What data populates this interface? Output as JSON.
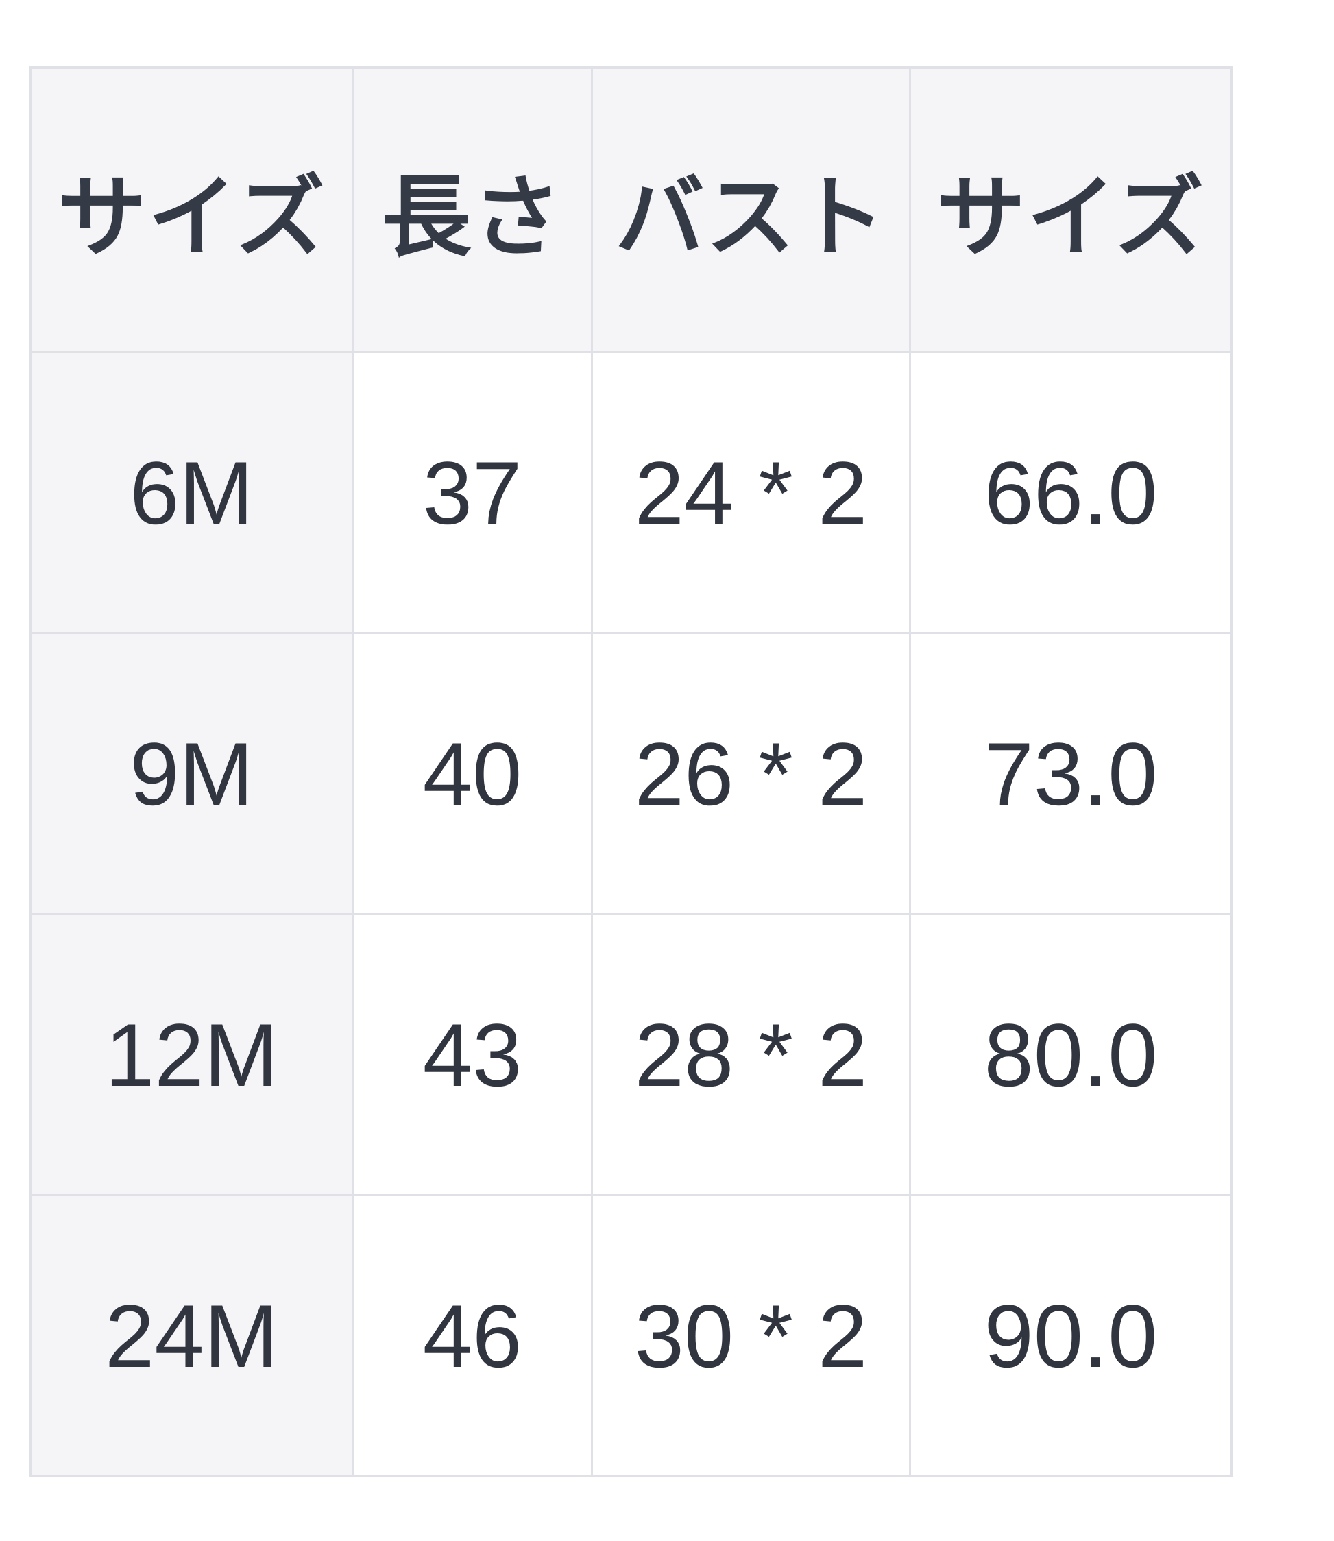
{
  "size_chart": {
    "headers": [
      "サイズ",
      "長さ",
      "バスト",
      "サイズ"
    ],
    "rows": [
      [
        "6M",
        "37",
        "24 * 2",
        "66.0"
      ],
      [
        "9M",
        "40",
        "26 * 2",
        "73.0"
      ],
      [
        "12M",
        "43",
        "28 * 2",
        "80.0"
      ],
      [
        "24M",
        "46",
        "30 * 2",
        "90.0"
      ]
    ],
    "colors": {
      "header_background": "#f5f5f7",
      "first_column_background": "#f5f5f7",
      "cell_background": "#ffffff",
      "grid_border": "#e0e1e6",
      "header_text": "#343b46",
      "cell_text": "#30353f",
      "page_background": "#ffffff"
    }
  }
}
